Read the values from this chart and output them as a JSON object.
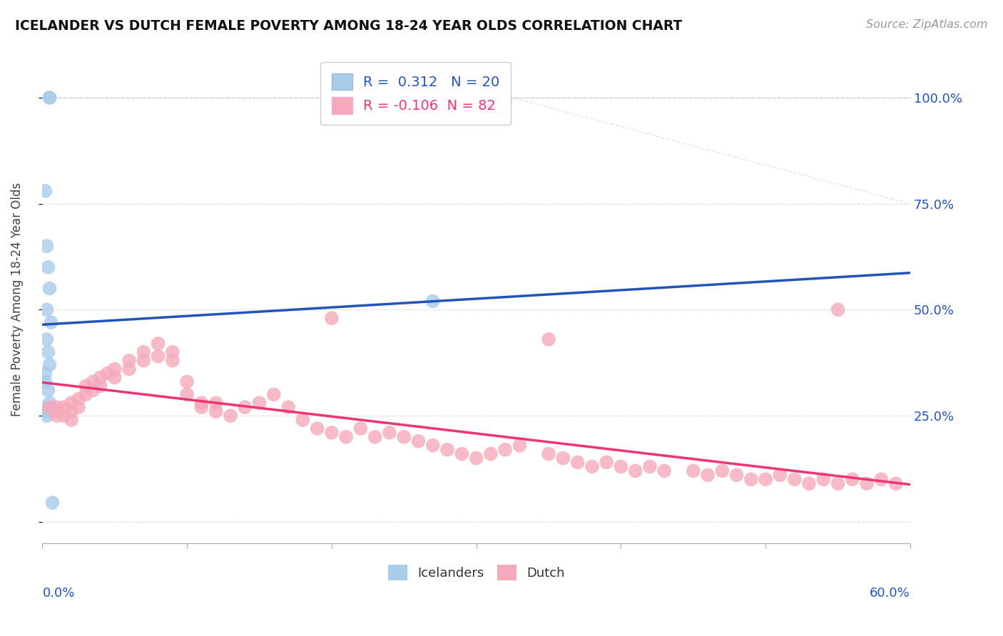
{
  "title": "ICELANDER VS DUTCH FEMALE POVERTY AMONG 18-24 YEAR OLDS CORRELATION CHART",
  "source": "Source: ZipAtlas.com",
  "ylabel": "Female Poverty Among 18-24 Year Olds",
  "ytick_vals": [
    0.0,
    0.25,
    0.5,
    0.75,
    1.0
  ],
  "ytick_labels": [
    "",
    "25.0%",
    "50.0%",
    "75.0%",
    "100.0%"
  ],
  "xlim": [
    0.0,
    0.6
  ],
  "ylim": [
    -0.05,
    1.1
  ],
  "R_icelander": 0.312,
  "N_icelander": 20,
  "R_dutch": -0.106,
  "N_dutch": 82,
  "icelander_color": "#A8CCEA",
  "dutch_color": "#F5AABB",
  "icelander_line_color": "#2255BB",
  "dutch_line_color": "#EE3377",
  "background_color": "#FFFFFF",
  "grid_color": "#DDDDDD",
  "ice_x": [
    0.005,
    0.005,
    0.002,
    0.003,
    0.004,
    0.005,
    0.003,
    0.006,
    0.003,
    0.004,
    0.005,
    0.002,
    0.002,
    0.004,
    0.005,
    0.003,
    0.27,
    0.003,
    0.003,
    0.007
  ],
  "ice_y": [
    1.0,
    1.0,
    0.78,
    0.65,
    0.6,
    0.55,
    0.5,
    0.47,
    0.43,
    0.4,
    0.37,
    0.35,
    0.33,
    0.31,
    0.28,
    0.27,
    0.52,
    0.26,
    0.25,
    0.045
  ],
  "dutch_x": [
    0.005,
    0.01,
    0.01,
    0.01,
    0.015,
    0.015,
    0.02,
    0.02,
    0.02,
    0.025,
    0.025,
    0.03,
    0.03,
    0.035,
    0.035,
    0.04,
    0.04,
    0.045,
    0.05,
    0.05,
    0.06,
    0.06,
    0.07,
    0.07,
    0.08,
    0.08,
    0.09,
    0.09,
    0.1,
    0.1,
    0.11,
    0.11,
    0.12,
    0.12,
    0.13,
    0.14,
    0.15,
    0.16,
    0.17,
    0.18,
    0.19,
    0.2,
    0.21,
    0.22,
    0.23,
    0.24,
    0.25,
    0.26,
    0.27,
    0.28,
    0.29,
    0.3,
    0.31,
    0.32,
    0.33,
    0.35,
    0.36,
    0.37,
    0.38,
    0.39,
    0.4,
    0.41,
    0.42,
    0.43,
    0.45,
    0.46,
    0.47,
    0.48,
    0.49,
    0.5,
    0.51,
    0.52,
    0.53,
    0.54,
    0.55,
    0.56,
    0.57,
    0.58,
    0.59,
    0.2,
    0.35,
    0.55
  ],
  "dutch_y": [
    0.27,
    0.27,
    0.26,
    0.25,
    0.27,
    0.25,
    0.28,
    0.26,
    0.24,
    0.29,
    0.27,
    0.32,
    0.3,
    0.33,
    0.31,
    0.34,
    0.32,
    0.35,
    0.36,
    0.34,
    0.38,
    0.36,
    0.4,
    0.38,
    0.42,
    0.39,
    0.4,
    0.38,
    0.33,
    0.3,
    0.28,
    0.27,
    0.26,
    0.28,
    0.25,
    0.27,
    0.28,
    0.3,
    0.27,
    0.24,
    0.22,
    0.21,
    0.2,
    0.22,
    0.2,
    0.21,
    0.2,
    0.19,
    0.18,
    0.17,
    0.16,
    0.15,
    0.16,
    0.17,
    0.18,
    0.16,
    0.15,
    0.14,
    0.13,
    0.14,
    0.13,
    0.12,
    0.13,
    0.12,
    0.12,
    0.11,
    0.12,
    0.11,
    0.1,
    0.1,
    0.11,
    0.1,
    0.09,
    0.1,
    0.09,
    0.1,
    0.09,
    0.1,
    0.09,
    0.48,
    0.43,
    0.5
  ]
}
